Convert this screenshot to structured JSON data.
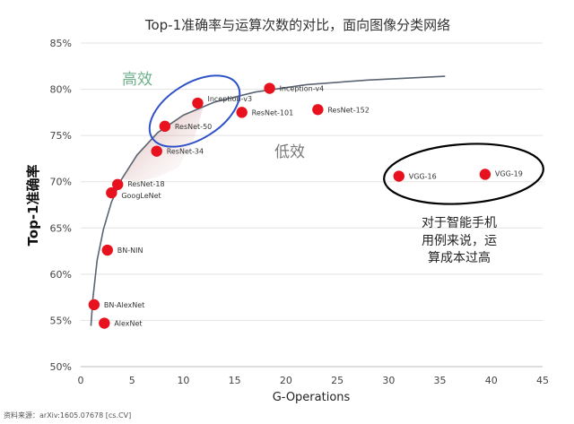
{
  "chart_data": {
    "type": "scatter",
    "title": "Top-1准确率与运算次数的对比，面向图像分类网络",
    "xlabel": "G-Operations",
    "ylabel": "Top-1准确率",
    "xlim": [
      0,
      45
    ],
    "ylim": [
      50,
      85
    ],
    "xticks": [
      "0",
      "5",
      "10",
      "15",
      "20",
      "25",
      "30",
      "35",
      "40",
      "45"
    ],
    "yticks": [
      "50%",
      "55%",
      "60%",
      "65%",
      "70%",
      "75%",
      "80%",
      "85%"
    ],
    "grid": true,
    "points": [
      {
        "name": "AlexNet",
        "x": 2.3,
        "y": 54.7
      },
      {
        "name": "BN-AlexNet",
        "x": 1.3,
        "y": 56.7
      },
      {
        "name": "BN-NIN",
        "x": 2.6,
        "y": 62.6
      },
      {
        "name": "GoogLeNet",
        "x": 3.0,
        "y": 68.8
      },
      {
        "name": "ResNet-18",
        "x": 3.6,
        "y": 69.7
      },
      {
        "name": "ResNet-34",
        "x": 7.4,
        "y": 73.3
      },
      {
        "name": "ResNet-50",
        "x": 8.2,
        "y": 76.0
      },
      {
        "name": "Inception-v3",
        "x": 11.4,
        "y": 78.5
      },
      {
        "name": "ResNet-101",
        "x": 15.7,
        "y": 77.5
      },
      {
        "name": "Inception-v4",
        "x": 18.4,
        "y": 80.1
      },
      {
        "name": "ResNet-152",
        "x": 23.1,
        "y": 77.8
      },
      {
        "name": "VGG-16",
        "x": 31.0,
        "y": 70.6
      },
      {
        "name": "VGG-19",
        "x": 39.4,
        "y": 70.8
      }
    ],
    "annotations": {
      "high_efficiency": "高效",
      "low_efficiency": "低效",
      "note_lines": [
        "对于智能手机",
        "用例来说，运",
        "算成本过高"
      ]
    },
    "source": "资料来源：arXiv:1605.07678 [cs.CV]",
    "colors": {
      "point": "#e8121f",
      "curve": "#5a6472",
      "high_ellipse": "#2f52c8",
      "low_ellipse": "#000000",
      "shade": "#b15a5a"
    }
  }
}
